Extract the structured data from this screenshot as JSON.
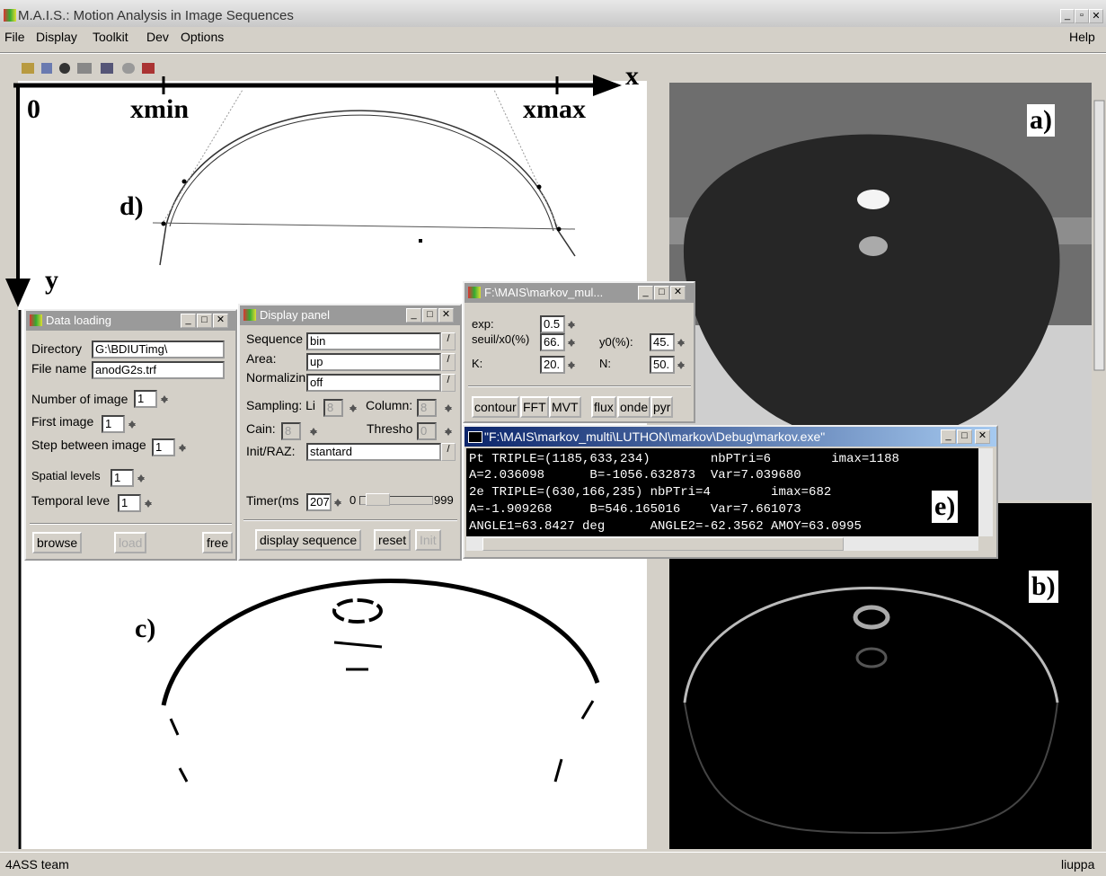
{
  "window": {
    "title": "M.A.I.S.: Motion Analysis in Image Sequences",
    "menu": [
      "File",
      "Display",
      "Toolkit",
      "Dev",
      "Options"
    ],
    "help": "Help",
    "status_left": "4ASS team",
    "status_right": "liuppa"
  },
  "annotations": {
    "x": "x",
    "y": "y",
    "origin": "0",
    "xmin": "xmin",
    "xmax": "xmax",
    "a": "a)",
    "b": "b)",
    "c": "c)",
    "d": "d)",
    "e": "e)"
  },
  "data_loading": {
    "title": "Data loading",
    "directory_label": "Directory",
    "directory": "G:\\BDIUTimg\\",
    "file_label": "File name",
    "file": "anodG2s.trf",
    "number_label": "Number of image",
    "number": "1",
    "first_label": "First image",
    "first": "1",
    "step_label": "Step between image",
    "step": "1",
    "spatial_label": "Spatial levels",
    "spatial": "1",
    "temporal_label": "Temporal leve",
    "temporal": "1",
    "buttons": [
      "browse",
      "load",
      "free"
    ]
  },
  "display_panel": {
    "title": "Display panel",
    "sequence_label": "Sequence",
    "sequence": "bin",
    "area_label": "Area:",
    "area": "up",
    "normalize_label": "Normalizin",
    "normalize": "off",
    "sampling_label": "Sampling: Li",
    "sampling": "8",
    "column_label": "Column:",
    "column": "8",
    "cain_label": "Cain:",
    "cain": "8",
    "threshold_label": "Thresho",
    "threshold": "0",
    "init_label": "Init/RAZ:",
    "init": "stantard",
    "timer_label": "Timer(ms",
    "timer": "207",
    "slider_min": "0",
    "slider_max": "999",
    "buttons": [
      "display sequence",
      "reset",
      "Init"
    ]
  },
  "markov_panel": {
    "title": "F:\\MAIS\\markov_mul...",
    "exp_label": "exp:",
    "exp": "0.5",
    "seuil_label": "seuil/x0(%)",
    "seuil": "66.",
    "y0_label": "y0(%):",
    "y0": "45.",
    "k_label": "K:",
    "k": "20.",
    "n_label": "N:",
    "n": "50.",
    "buttons": [
      "contour",
      "FFT",
      "MVT",
      "flux",
      "onde",
      "pyr"
    ]
  },
  "console": {
    "title": "\"F:\\MAIS\\markov_multi\\LUTHON\\markov\\Debug\\markov.exe\"",
    "lines": [
      "Pt TRIPLE=(1185,633,234)        nbPTri=6        imax=1188",
      "A=2.036098      B=-1056.632873  Var=7.039680",
      "2e TRIPLE=(630,166,235) nbPTri=4        imax=682",
      "A=-1.909268     B=546.165016    Var=7.661073",
      "ANGLE1=63.8427 deg      ANGLE2=-62.3562 AMOY=63.0995"
    ]
  }
}
